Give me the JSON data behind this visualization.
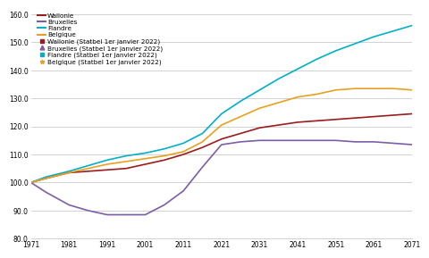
{
  "ylim": [
    80.0,
    162.0
  ],
  "xlim": [
    1971,
    2071
  ],
  "yticks": [
    80.0,
    90.0,
    100.0,
    110.0,
    120.0,
    130.0,
    140.0,
    150.0,
    160.0
  ],
  "xticks": [
    1971,
    1981,
    1991,
    2001,
    2011,
    2021,
    2031,
    2041,
    2051,
    2061,
    2071
  ],
  "lines": {
    "Wallonie": {
      "color": "#9b1c1c",
      "linewidth": 1.2,
      "x": [
        1971,
        1975,
        1981,
        1986,
        1991,
        1996,
        2001,
        2006,
        2011,
        2016,
        2021,
        2026,
        2031,
        2036,
        2041,
        2046,
        2051,
        2056,
        2061,
        2066,
        2071
      ],
      "y": [
        100.0,
        101.5,
        103.5,
        104.0,
        104.5,
        105.0,
        106.5,
        108.0,
        110.0,
        112.5,
        115.5,
        117.5,
        119.5,
        120.5,
        121.5,
        122.0,
        122.5,
        123.0,
        123.5,
        124.0,
        124.5
      ]
    },
    "Bruxelles": {
      "color": "#7b5ea7",
      "linewidth": 1.2,
      "x": [
        1971,
        1975,
        1981,
        1986,
        1991,
        1996,
        2001,
        2006,
        2011,
        2016,
        2021,
        2026,
        2031,
        2036,
        2041,
        2046,
        2051,
        2056,
        2061,
        2066,
        2071
      ],
      "y": [
        100.0,
        96.5,
        92.0,
        90.0,
        88.5,
        88.5,
        88.5,
        92.0,
        97.0,
        105.5,
        113.5,
        114.5,
        115.0,
        115.0,
        115.0,
        115.0,
        115.0,
        114.5,
        114.5,
        114.0,
        113.5
      ]
    },
    "Flandre": {
      "color": "#00b0c8",
      "linewidth": 1.2,
      "x": [
        1971,
        1975,
        1981,
        1986,
        1991,
        1996,
        2001,
        2006,
        2011,
        2016,
        2021,
        2026,
        2031,
        2036,
        2041,
        2046,
        2051,
        2056,
        2061,
        2066,
        2071
      ],
      "y": [
        100.0,
        102.0,
        104.0,
        106.0,
        108.0,
        109.5,
        110.5,
        112.0,
        114.0,
        117.5,
        124.5,
        129.0,
        133.0,
        137.0,
        140.5,
        144.0,
        147.0,
        149.5,
        152.0,
        154.0,
        156.0
      ]
    },
    "Belgique": {
      "color": "#e8a020",
      "linewidth": 1.2,
      "x": [
        1971,
        1975,
        1981,
        1986,
        1991,
        1996,
        2001,
        2006,
        2011,
        2016,
        2021,
        2026,
        2031,
        2036,
        2041,
        2046,
        2051,
        2056,
        2061,
        2066,
        2071
      ],
      "y": [
        100.0,
        101.5,
        103.5,
        105.0,
        106.5,
        107.5,
        108.5,
        109.5,
        111.0,
        114.5,
        120.5,
        123.5,
        126.5,
        128.5,
        130.5,
        131.5,
        133.0,
        133.5,
        133.5,
        133.5,
        133.0
      ]
    }
  },
  "colors": [
    "#9b1c1c",
    "#7b5ea7",
    "#00b0c8",
    "#e8a020"
  ],
  "labels_lines": [
    "Wallonie",
    "Bruxelles",
    "Flandre",
    "Belgique"
  ],
  "labels_scatter": [
    "Wallonie (Statbel 1er janvier 2022)",
    "Bruxelles (Statbel 1er janvier 2022)",
    "Flandre (Statbel 1er janvier 2022)",
    "Belgique (Statbel 1er janvier 2022)"
  ],
  "markers": [
    "s",
    "^",
    "s",
    "*"
  ],
  "bg_color": "#ffffff",
  "plot_bg_color": "#ffffff",
  "grid_color": "#c0c0c0",
  "tick_fontsize": 5.5,
  "legend_fontsize": 5.2
}
